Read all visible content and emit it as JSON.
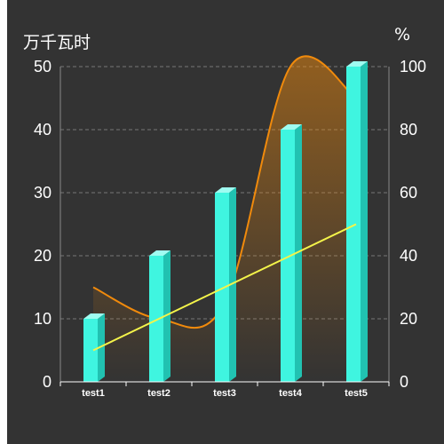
{
  "chart_data": {
    "type": "bar",
    "categories": [
      "test1",
      "test2",
      "test3",
      "test4",
      "test5"
    ],
    "y_left": {
      "unit": "万千瓦时",
      "ticks": [
        0,
        10,
        20,
        30,
        40,
        50
      ],
      "ylim": [
        0,
        50
      ]
    },
    "y_right": {
      "unit": "%",
      "ticks": [
        0,
        20,
        40,
        60,
        80,
        100
      ],
      "ylim": [
        0,
        100
      ]
    },
    "grid": true,
    "series": [
      {
        "type": "bar",
        "axis": "left",
        "values": [
          10,
          20,
          30,
          40,
          50
        ],
        "color": "#3ff5e0"
      },
      {
        "type": "line",
        "axis": "left",
        "values": [
          5,
          10,
          15,
          20,
          25
        ],
        "color": "#f4f44a",
        "smooth": false
      },
      {
        "type": "area",
        "axis": "right",
        "values": [
          30,
          20,
          25,
          100,
          90
        ],
        "color": "#f08a0c",
        "smooth": true
      }
    ]
  }
}
